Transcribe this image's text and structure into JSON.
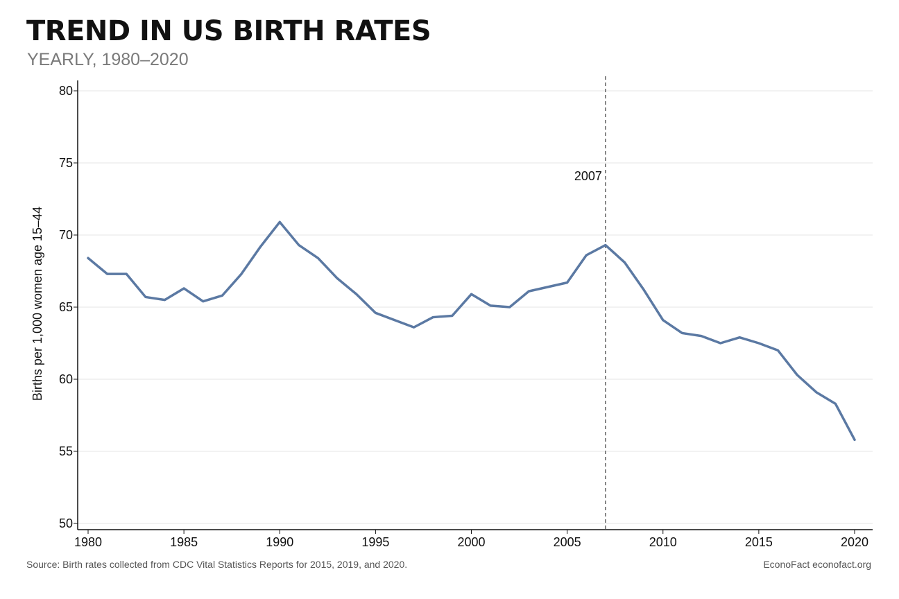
{
  "header": {
    "title": "TREND IN US BIRTH RATES",
    "subtitle": "YEARLY, 1980–2020"
  },
  "footer": {
    "source": "Source: Birth rates collected from CDC Vital Statistics Reports for 2015, 2019, and 2020.",
    "brand": "EconoFact  econofact.org"
  },
  "colors": {
    "line": "#5b79a3",
    "grid": "#e6e6e6",
    "axis": "#111111",
    "vline": "#666666"
  },
  "chart_data": {
    "type": "line",
    "title": "TREND IN US BIRTH RATES",
    "subtitle": "YEARLY, 1980–2020",
    "xlabel": "",
    "ylabel": "Births per 1,000 women age 15–44",
    "xlim": [
      1980,
      2020
    ],
    "ylim": [
      50,
      80
    ],
    "xticks": [
      1980,
      1985,
      1990,
      1995,
      2000,
      2005,
      2010,
      2015,
      2020
    ],
    "yticks": [
      50,
      55,
      60,
      65,
      70,
      75,
      80
    ],
    "grid": true,
    "x": [
      1980,
      1981,
      1982,
      1983,
      1984,
      1985,
      1986,
      1987,
      1988,
      1989,
      1990,
      1991,
      1992,
      1993,
      1994,
      1995,
      1996,
      1997,
      1998,
      1999,
      2000,
      2001,
      2002,
      2003,
      2004,
      2005,
      2006,
      2007,
      2008,
      2009,
      2010,
      2011,
      2012,
      2013,
      2014,
      2015,
      2016,
      2017,
      2018,
      2019,
      2020
    ],
    "series": [
      {
        "values": [
          68.4,
          67.3,
          67.3,
          65.7,
          65.5,
          66.3,
          65.4,
          65.8,
          67.3,
          69.2,
          70.9,
          69.3,
          68.4,
          67.0,
          65.9,
          64.6,
          64.1,
          63.6,
          64.3,
          64.4,
          65.9,
          65.1,
          65.0,
          66.1,
          66.4,
          66.7,
          68.6,
          69.3,
          68.1,
          66.2,
          64.1,
          63.2,
          63.0,
          62.5,
          62.9,
          62.5,
          62.0,
          60.3,
          59.1,
          58.3,
          55.8
        ]
      }
    ],
    "annotations": [
      {
        "type": "vline",
        "x": 2007,
        "label": "2007"
      }
    ]
  }
}
